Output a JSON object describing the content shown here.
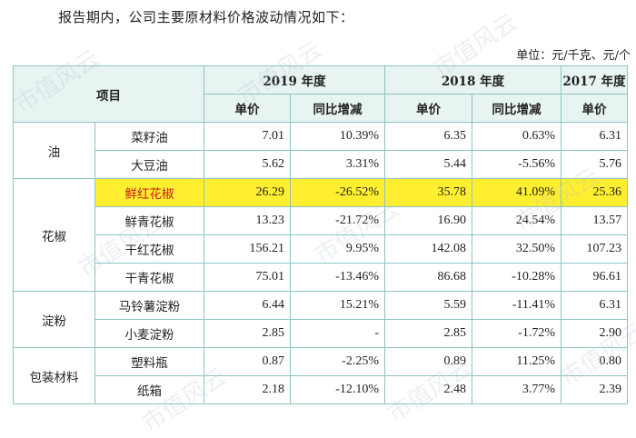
{
  "intro": "报告期内，公司主要原材料价格波动情况如下：",
  "unit": "单位：元/千克、元/个",
  "header": {
    "item": "项目",
    "years": [
      "2019 年度",
      "2018 年度",
      "2017 年度"
    ],
    "sub": [
      "单价",
      "同比增减",
      "单价",
      "同比增减",
      "单价"
    ]
  },
  "rows": [
    {
      "group": "油",
      "name": "菜籽油",
      "p2019": "7.01",
      "c2019": "10.39%",
      "p2018": "6.35",
      "c2018": "0.63%",
      "p2017": "6.31"
    },
    {
      "group": "油",
      "name": "大豆油",
      "p2019": "5.62",
      "c2019": "3.31%",
      "p2018": "5.44",
      "c2018": "-5.56%",
      "p2017": "5.76"
    },
    {
      "group": "花椒",
      "name": "鲜红花椒",
      "p2019": "26.29",
      "c2019": "-26.52%",
      "p2018": "35.78",
      "c2018": "41.09%",
      "p2017": "25.36",
      "highlight": true
    },
    {
      "group": "花椒",
      "name": "鲜青花椒",
      "p2019": "13.23",
      "c2019": "-21.72%",
      "p2018": "16.90",
      "c2018": "24.54%",
      "p2017": "13.57"
    },
    {
      "group": "花椒",
      "name": "干红花椒",
      "p2019": "156.21",
      "c2019": "9.95%",
      "p2018": "142.08",
      "c2018": "32.50%",
      "p2017": "107.23"
    },
    {
      "group": "花椒",
      "name": "干青花椒",
      "p2019": "75.01",
      "c2019": "-13.46%",
      "p2018": "86.68",
      "c2018": "-10.28%",
      "p2017": "96.61"
    },
    {
      "group": "淀粉",
      "name": "马铃薯淀粉",
      "p2019": "6.44",
      "c2019": "15.21%",
      "p2018": "5.59",
      "c2018": "-11.41%",
      "p2017": "6.31"
    },
    {
      "group": "淀粉",
      "name": "小麦淀粉",
      "p2019": "2.85",
      "c2019": "-",
      "p2018": "2.85",
      "c2018": "-1.72%",
      "p2017": "2.90"
    },
    {
      "group": "包装材料",
      "name": "塑料瓶",
      "p2019": "0.87",
      "c2019": "-2.25%",
      "p2018": "0.89",
      "c2018": "11.25%",
      "p2017": "0.80"
    },
    {
      "group": "包装材料",
      "name": "纸箱",
      "p2019": "2.18",
      "c2019": "-12.10%",
      "p2018": "2.48",
      "c2018": "3.77%",
      "p2017": "2.39"
    }
  ],
  "watermark": "市值风云",
  "colors": {
    "highlight": "#ffef30",
    "highlight_text": "#cc1a1a",
    "header_bg": "#e8f4f2",
    "border": "#8cc4c2"
  }
}
